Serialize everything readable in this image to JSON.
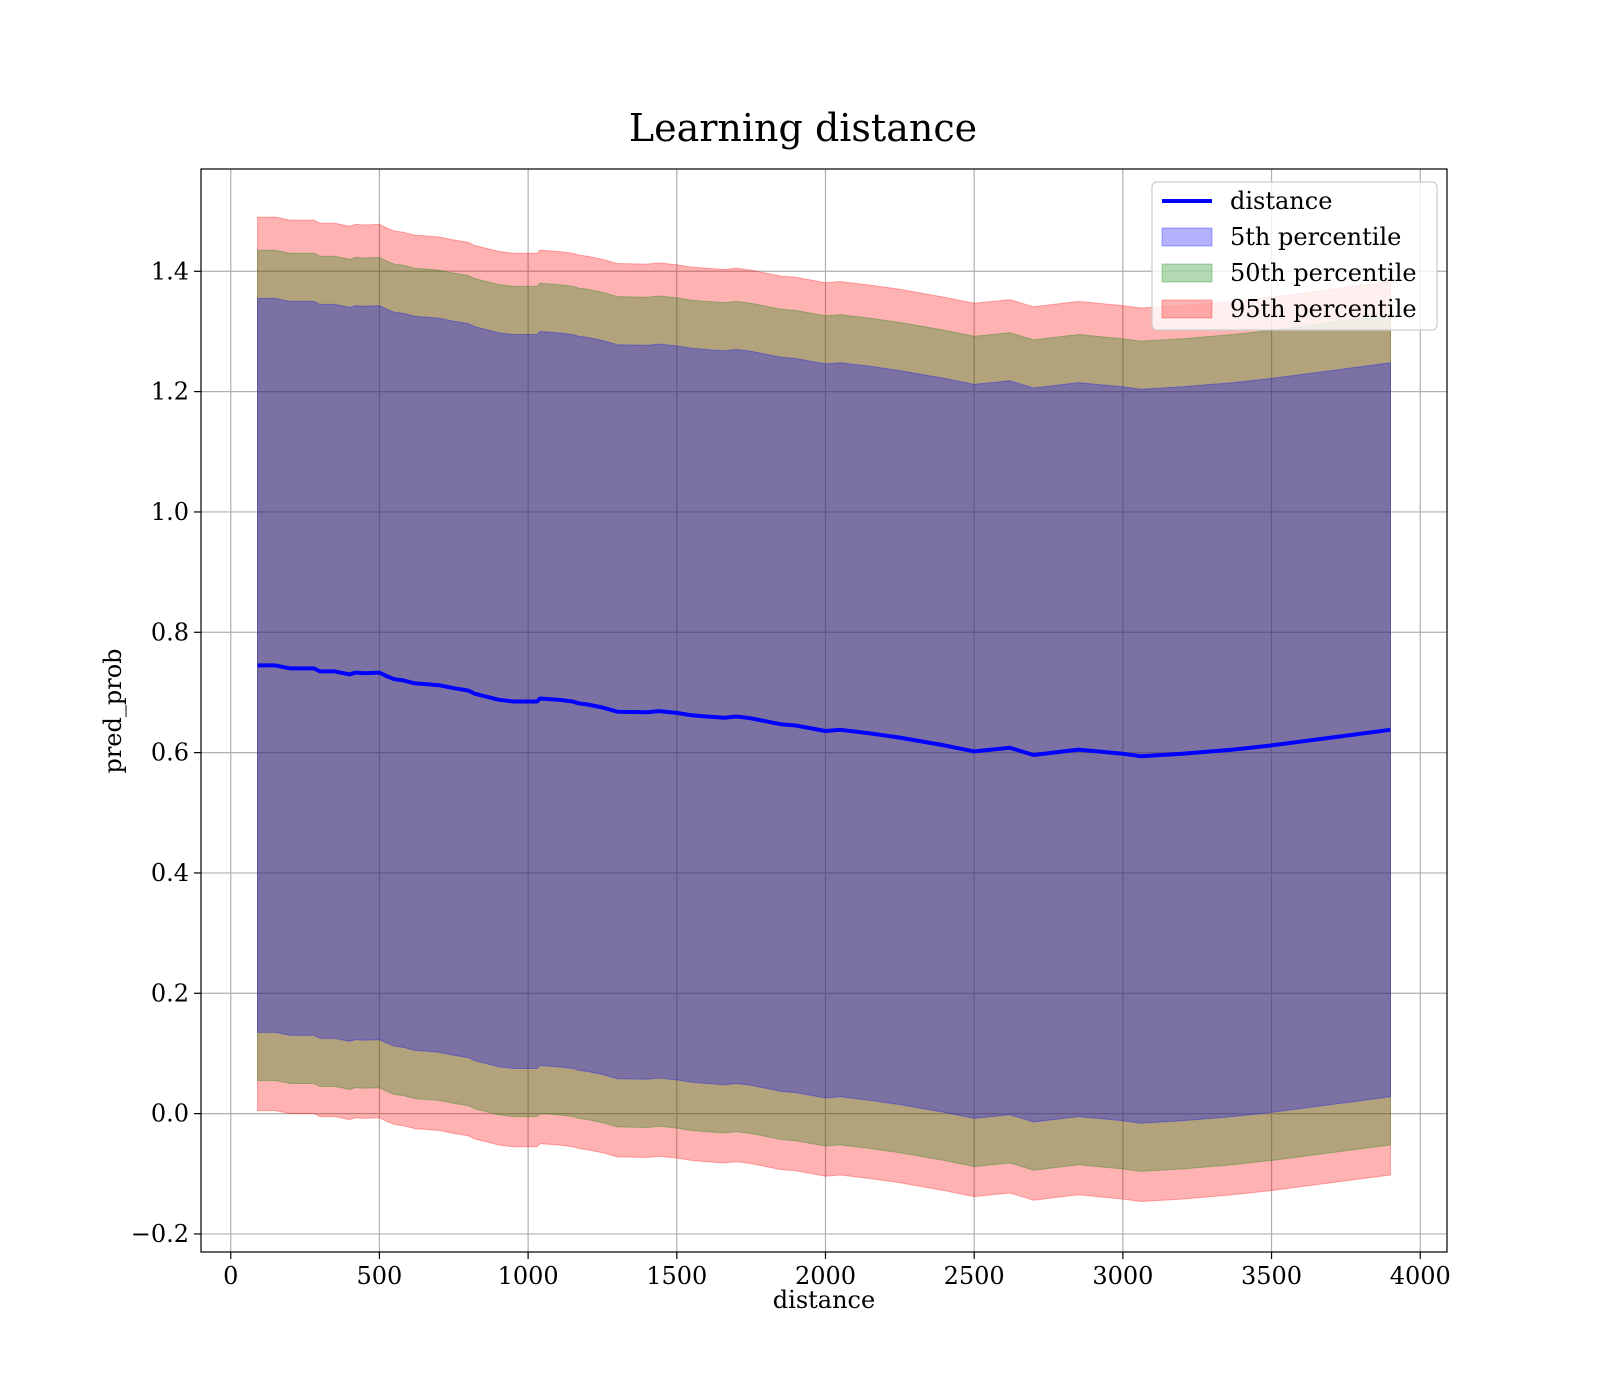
{
  "chart_data": {
    "type": "line",
    "title": "Learning distance",
    "xlabel": "distance",
    "ylabel": "pred_prob",
    "xlim": [
      -100,
      4090
    ],
    "ylim": [
      -0.23,
      1.57
    ],
    "xticks": [
      0,
      500,
      1000,
      1500,
      2000,
      2500,
      3000,
      3500,
      4000
    ],
    "xtick_labels": [
      "0",
      "500",
      "1000",
      "1500",
      "2000",
      "2500",
      "3000",
      "3500",
      "4000"
    ],
    "yticks": [
      -0.2,
      0.0,
      0.2,
      0.4,
      0.6,
      0.8,
      1.0,
      1.2,
      1.4
    ],
    "ytick_labels": [
      "−0.2",
      "0.0",
      "0.2",
      "0.4",
      "0.6",
      "0.8",
      "1.0",
      "1.2",
      "1.4"
    ],
    "grid": true,
    "legend_position": "top-right",
    "x": [
      90,
      150,
      200,
      280,
      300,
      350,
      400,
      420,
      450,
      500,
      520,
      550,
      580,
      620,
      650,
      700,
      750,
      800,
      820,
      900,
      950,
      1030,
      1040,
      1100,
      1150,
      1170,
      1200,
      1250,
      1300,
      1400,
      1440,
      1500,
      1550,
      1600,
      1660,
      1700,
      1750,
      1800,
      1850,
      1900,
      2000,
      2050,
      2150,
      2250,
      2400,
      2500,
      2620,
      2700,
      2850,
      3000,
      3060,
      3200,
      3370,
      3500,
      3700,
      3900
    ],
    "series": [
      {
        "name": "distance",
        "kind": "line",
        "color": "#0000ff",
        "values": [
          0.745,
          0.745,
          0.74,
          0.74,
          0.735,
          0.735,
          0.73,
          0.733,
          0.732,
          0.733,
          0.728,
          0.722,
          0.72,
          0.715,
          0.714,
          0.712,
          0.707,
          0.703,
          0.698,
          0.688,
          0.685,
          0.685,
          0.69,
          0.688,
          0.685,
          0.682,
          0.68,
          0.675,
          0.668,
          0.667,
          0.669,
          0.666,
          0.662,
          0.66,
          0.658,
          0.66,
          0.657,
          0.652,
          0.647,
          0.645,
          0.636,
          0.638,
          0.632,
          0.625,
          0.612,
          0.602,
          0.608,
          0.596,
          0.605,
          0.598,
          0.594,
          0.598,
          0.605,
          0.612,
          0.625,
          0.638
        ]
      },
      {
        "name": "5th percentile",
        "kind": "band",
        "color": "#0000ff",
        "upper_offset": 0.61,
        "lower_offset": 0.61
      },
      {
        "name": "50th percentile",
        "kind": "band",
        "color": "#008000",
        "upper_offset": 0.69,
        "lower_offset": 0.69
      },
      {
        "name": "95th percentile",
        "kind": "band",
        "color": "#ff0000",
        "upper_offset": 0.745,
        "lower_offset": 0.74
      }
    ]
  }
}
